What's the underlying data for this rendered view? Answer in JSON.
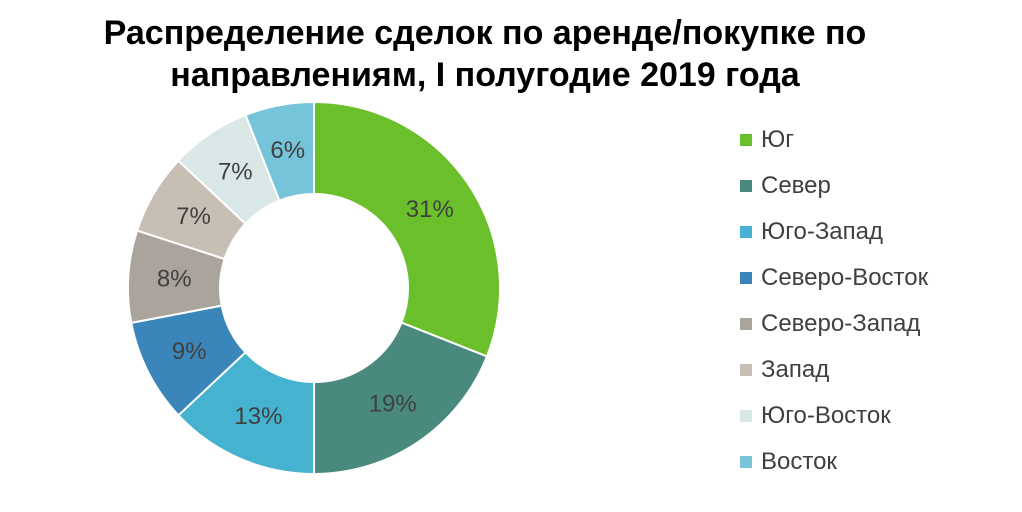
{
  "chart_data": {
    "type": "pie",
    "variant": "donut",
    "title_lines": [
      "Распределение сделок по аренде/покупке по",
      "направлениям, I полугодие 2019 года"
    ],
    "legend_position": "right",
    "categories": [
      "Юг",
      "Север",
      "Юго-Запад",
      "Северо-Восток",
      "Северо-Запад",
      "Запад",
      "Юго-Восток",
      "Восток"
    ],
    "values": [
      31,
      19,
      13,
      9,
      8,
      7,
      7,
      6
    ],
    "labels": [
      "31%",
      "19%",
      "13%",
      "9%",
      "8%",
      "7%",
      "7%",
      "6%"
    ],
    "colors": [
      "#6abf2a",
      "#4a8a7e",
      "#45b2d0",
      "#3a86bb",
      "#aaa49c",
      "#c7bfb4",
      "#d9e7e6",
      "#76c4d9"
    ]
  }
}
